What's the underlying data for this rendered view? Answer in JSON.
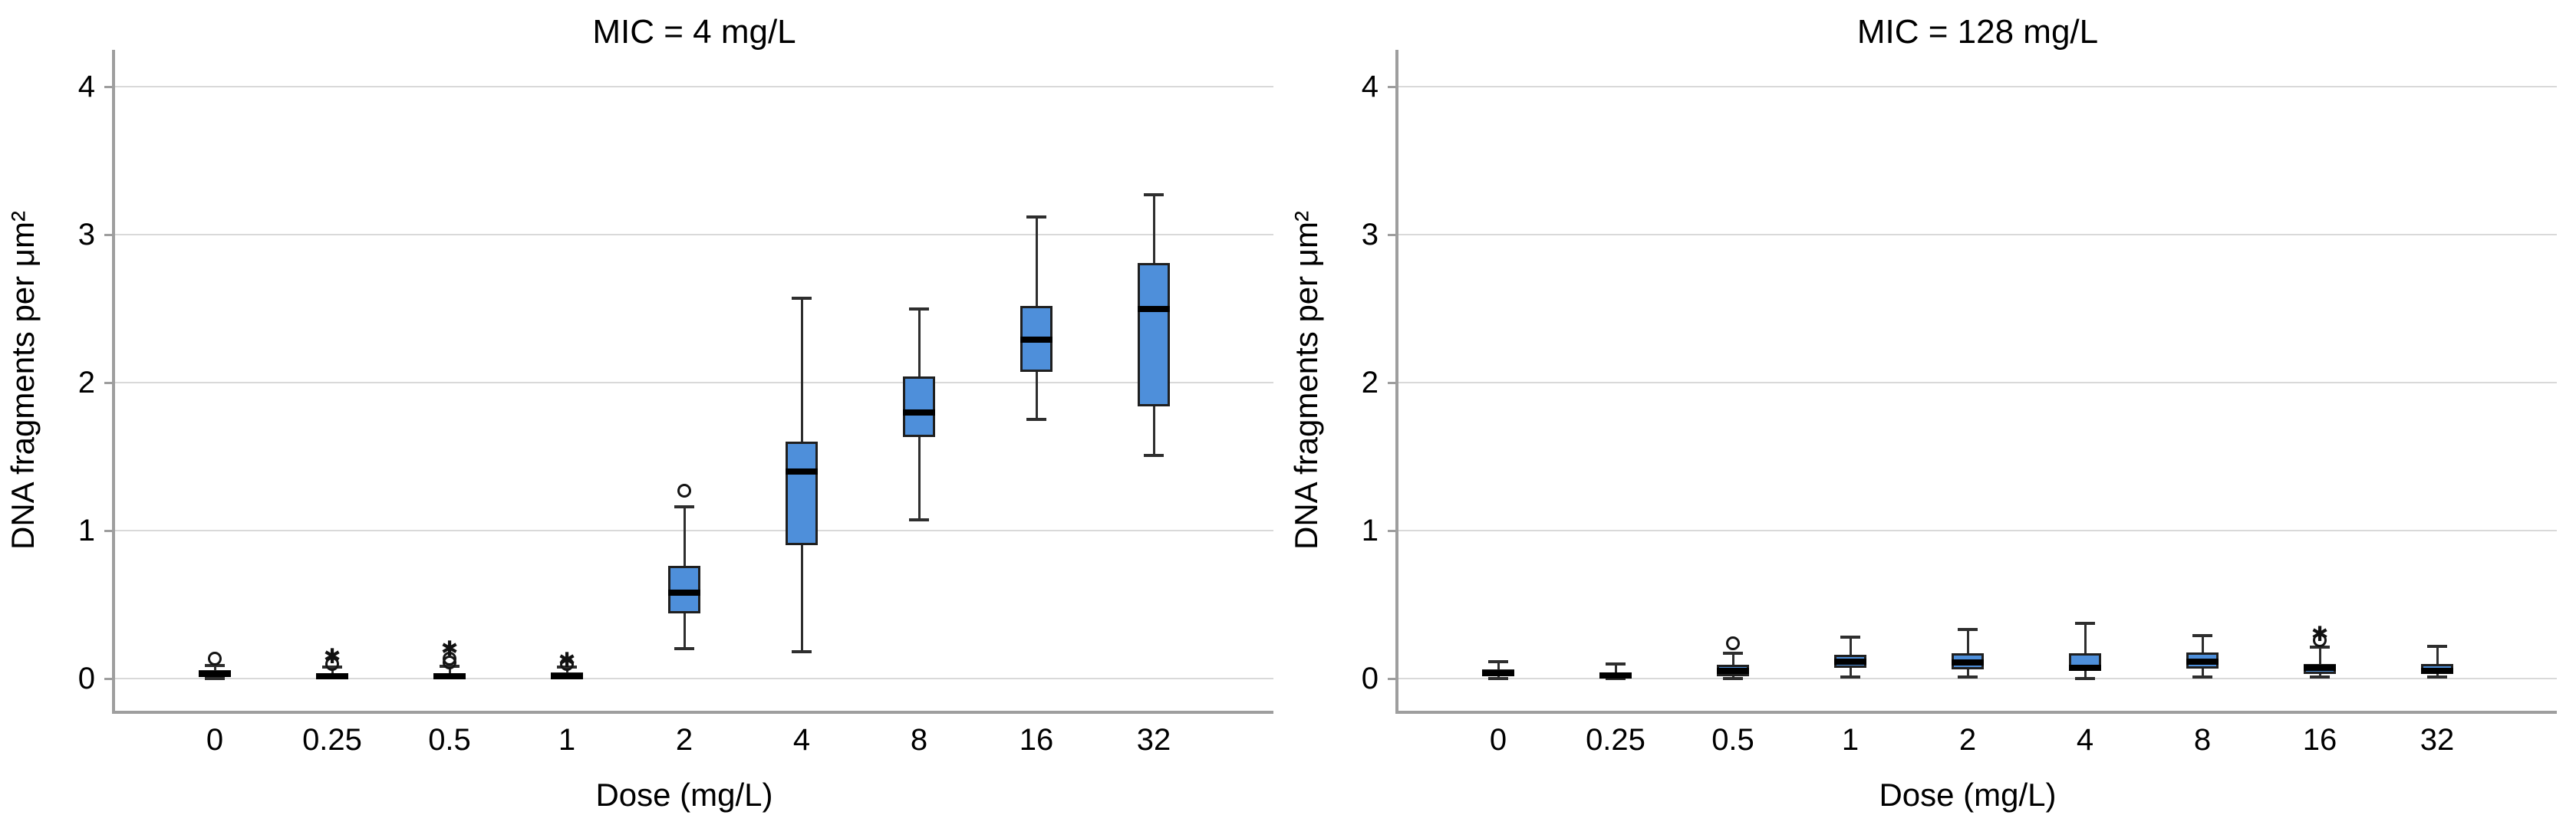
{
  "figure": {
    "background": "#ffffff",
    "accent_color": "#4E8FDA",
    "grid_color": "#d9d9d9",
    "axis_color": "#9e9e9e"
  },
  "chart_data": [
    {
      "type": "box",
      "title": "MIC = 4 mg/L",
      "xlabel": "Dose (mg/L)",
      "ylabel": "DNA fragments per μm²",
      "ylim": [
        -0.22,
        4.25
      ],
      "yticks": [
        0,
        1,
        2,
        3,
        4
      ],
      "grid": "horizontal",
      "legend": "none",
      "box_fill": "#4E8FDA",
      "categories": [
        "0",
        "0.25",
        "0.5",
        "1",
        "2",
        "4",
        "8",
        "16",
        "32"
      ],
      "boxes": [
        {
          "dose": "0",
          "q1": 0.013,
          "median": 0.03,
          "q3": 0.056,
          "whisker_low": 0.0,
          "whisker_high": 0.09,
          "outliers": [
            {
              "value": 0.134,
              "type": "circle"
            }
          ]
        },
        {
          "dose": "0.25",
          "q1": 0.0,
          "median": 0.016,
          "q3": 0.037,
          "whisker_low": 0.0,
          "whisker_high": 0.077,
          "outliers": [
            {
              "value": 0.1,
              "type": "circle"
            },
            {
              "value": 0.15,
              "type": "star"
            }
          ]
        },
        {
          "dose": "0.5",
          "q1": 0.0,
          "median": 0.016,
          "q3": 0.037,
          "whisker_low": 0.0,
          "whisker_high": 0.085,
          "outliers": [
            {
              "value": 0.11,
              "type": "circle"
            },
            {
              "value": 0.135,
              "type": "circle"
            },
            {
              "value": 0.2,
              "type": "star"
            }
          ]
        },
        {
          "dose": "1",
          "q1": 0.0,
          "median": 0.013,
          "q3": 0.04,
          "whisker_low": 0.0,
          "whisker_high": 0.077,
          "outliers": [
            {
              "value": 0.1,
              "type": "circle"
            },
            {
              "value": 0.126,
              "type": "star"
            }
          ]
        },
        {
          "dose": "2",
          "q1": 0.44,
          "median": 0.58,
          "q3": 0.76,
          "whisker_low": 0.2,
          "whisker_high": 1.16,
          "outliers": [
            {
              "value": 1.27,
              "type": "circle"
            }
          ]
        },
        {
          "dose": "4",
          "q1": 0.9,
          "median": 1.4,
          "q3": 1.6,
          "whisker_low": 0.18,
          "whisker_high": 2.57,
          "outliers": []
        },
        {
          "dose": "8",
          "q1": 1.63,
          "median": 1.8,
          "q3": 2.04,
          "whisker_low": 1.07,
          "whisker_high": 2.5,
          "outliers": []
        },
        {
          "dose": "16",
          "q1": 2.07,
          "median": 2.29,
          "q3": 2.52,
          "whisker_low": 1.75,
          "whisker_high": 3.12,
          "outliers": []
        },
        {
          "dose": "32",
          "q1": 1.84,
          "median": 2.5,
          "q3": 2.81,
          "whisker_low": 1.51,
          "whisker_high": 3.27,
          "outliers": []
        }
      ]
    },
    {
      "type": "box",
      "title": "MIC = 128 mg/L",
      "xlabel": "Dose (mg/L)",
      "ylabel": "DNA fragments per μm²",
      "ylim": [
        -0.22,
        4.25
      ],
      "yticks": [
        0,
        1,
        2,
        3,
        4
      ],
      "grid": "horizontal",
      "legend": "none",
      "box_fill": "#4E8FDA",
      "categories": [
        "0",
        "0.25",
        "0.5",
        "1",
        "2",
        "4",
        "8",
        "16",
        "32"
      ],
      "boxes": [
        {
          "dose": "0",
          "q1": 0.016,
          "median": 0.036,
          "q3": 0.062,
          "whisker_low": 0.0,
          "whisker_high": 0.114,
          "outliers": []
        },
        {
          "dose": "0.25",
          "q1": 0.005,
          "median": 0.023,
          "q3": 0.044,
          "whisker_low": 0.0,
          "whisker_high": 0.1,
          "outliers": []
        },
        {
          "dose": "0.5",
          "q1": 0.014,
          "median": 0.05,
          "q3": 0.094,
          "whisker_low": 0.0,
          "whisker_high": 0.17,
          "outliers": [
            {
              "value": 0.24,
              "type": "circle"
            }
          ]
        },
        {
          "dose": "1",
          "q1": 0.07,
          "median": 0.115,
          "q3": 0.16,
          "whisker_low": 0.01,
          "whisker_high": 0.28,
          "outliers": []
        },
        {
          "dose": "2",
          "q1": 0.06,
          "median": 0.11,
          "q3": 0.17,
          "whisker_low": 0.01,
          "whisker_high": 0.33,
          "outliers": []
        },
        {
          "dose": "4",
          "q1": 0.05,
          "median": 0.075,
          "q3": 0.17,
          "whisker_low": 0.0,
          "whisker_high": 0.375,
          "outliers": []
        },
        {
          "dose": "8",
          "q1": 0.065,
          "median": 0.115,
          "q3": 0.175,
          "whisker_low": 0.01,
          "whisker_high": 0.29,
          "outliers": []
        },
        {
          "dose": "16",
          "q1": 0.03,
          "median": 0.07,
          "q3": 0.1,
          "whisker_low": 0.01,
          "whisker_high": 0.21,
          "outliers": [
            {
              "value": 0.26,
              "type": "circle"
            },
            {
              "value": 0.3,
              "type": "star"
            }
          ]
        },
        {
          "dose": "32",
          "q1": 0.03,
          "median": 0.05,
          "q3": 0.1,
          "whisker_low": 0.01,
          "whisker_high": 0.22,
          "outliers": []
        }
      ]
    }
  ]
}
